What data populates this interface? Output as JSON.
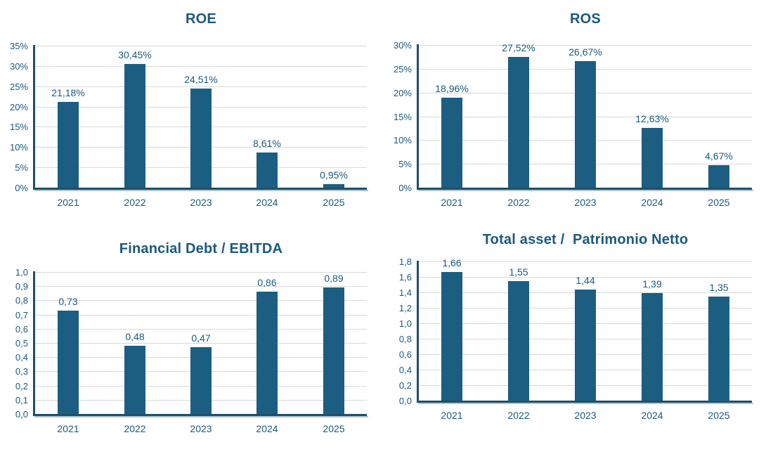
{
  "colors": {
    "bar": "#1B5E81",
    "text": "#1B597E",
    "grid": "#D9D9D9",
    "axis": "#1E4F68",
    "axis_shadow": "#8FAEBE",
    "background": "#FFFFFF"
  },
  "chart_data": [
    {
      "id": "roe",
      "type": "bar",
      "title": "ROE",
      "categories": [
        "2021",
        "2022",
        "2023",
        "2024",
        "2025"
      ],
      "values": [
        21.18,
        30.45,
        24.51,
        8.61,
        0.95
      ],
      "value_labels": [
        "21,18%",
        "30,45%",
        "24,51%",
        "8,61%",
        "0,95%"
      ],
      "xlabel": "",
      "ylabel": "",
      "ylim": [
        0,
        35
      ],
      "grid": true,
      "legend": "none",
      "yticks": [
        {
          "value": 0,
          "label": "0%"
        },
        {
          "value": 5,
          "label": "5%"
        },
        {
          "value": 10,
          "label": "10%"
        },
        {
          "value": 15,
          "label": "15%"
        },
        {
          "value": 20,
          "label": "20%"
        },
        {
          "value": 25,
          "label": "25%"
        },
        {
          "value": 30,
          "label": "30%"
        },
        {
          "value": 35,
          "label": "35%"
        }
      ]
    },
    {
      "id": "ros",
      "type": "bar",
      "title": "ROS",
      "categories": [
        "2021",
        "2022",
        "2023",
        "2024",
        "2025"
      ],
      "values": [
        18.96,
        27.52,
        26.67,
        12.63,
        4.67
      ],
      "value_labels": [
        "18,96%",
        "27,52%",
        "26,67%",
        "12,63%",
        "4,67%"
      ],
      "xlabel": "",
      "ylabel": "",
      "ylim": [
        0,
        30
      ],
      "grid": true,
      "legend": "none",
      "yticks": [
        {
          "value": 0,
          "label": "0%"
        },
        {
          "value": 5,
          "label": "5%"
        },
        {
          "value": 10,
          "label": "10%"
        },
        {
          "value": 15,
          "label": "15%"
        },
        {
          "value": 20,
          "label": "20%"
        },
        {
          "value": 25,
          "label": "25%"
        },
        {
          "value": 30,
          "label": "30%"
        }
      ]
    },
    {
      "id": "financial-debt-ebitda",
      "type": "bar",
      "title": "Financial Debt / EBITDA",
      "categories": [
        "2021",
        "2022",
        "2023",
        "2024",
        "2025"
      ],
      "values": [
        0.73,
        0.48,
        0.47,
        0.86,
        0.89
      ],
      "value_labels": [
        "0,73",
        "0,48",
        "0,47",
        "0,86",
        "0,89"
      ],
      "xlabel": "",
      "ylabel": "",
      "ylim": [
        0,
        1.0
      ],
      "grid": true,
      "legend": "none",
      "yticks": [
        {
          "value": 0.0,
          "label": "0,0"
        },
        {
          "value": 0.1,
          "label": "0,1"
        },
        {
          "value": 0.2,
          "label": "0,2"
        },
        {
          "value": 0.3,
          "label": "0,3"
        },
        {
          "value": 0.4,
          "label": "0,4"
        },
        {
          "value": 0.5,
          "label": "0,5"
        },
        {
          "value": 0.6,
          "label": "0,6"
        },
        {
          "value": 0.7,
          "label": "0,7"
        },
        {
          "value": 0.8,
          "label": "0,8"
        },
        {
          "value": 0.9,
          "label": "0,9"
        },
        {
          "value": 1.0,
          "label": "1,0"
        }
      ]
    },
    {
      "id": "total-asset-patrimonio-netto",
      "type": "bar",
      "title": "Total asset /  Patrimonio Netto",
      "categories": [
        "2021",
        "2022",
        "2023",
        "2024",
        "2025"
      ],
      "values": [
        1.66,
        1.55,
        1.44,
        1.39,
        1.35
      ],
      "value_labels": [
        "1,66",
        "1,55",
        "1,44",
        "1,39",
        "1,35"
      ],
      "xlabel": "",
      "ylabel": "",
      "ylim": [
        0,
        1.8
      ],
      "grid": true,
      "legend": "none",
      "yticks": [
        {
          "value": 0.0,
          "label": "0,0"
        },
        {
          "value": 0.2,
          "label": "0,2"
        },
        {
          "value": 0.4,
          "label": "0,4"
        },
        {
          "value": 0.6,
          "label": "0,6"
        },
        {
          "value": 0.8,
          "label": "0,8"
        },
        {
          "value": 1.0,
          "label": "1,0"
        },
        {
          "value": 1.2,
          "label": "1,2"
        },
        {
          "value": 1.4,
          "label": "1,4"
        },
        {
          "value": 1.6,
          "label": "1,6"
        },
        {
          "value": 1.8,
          "label": "1,8"
        }
      ]
    }
  ]
}
